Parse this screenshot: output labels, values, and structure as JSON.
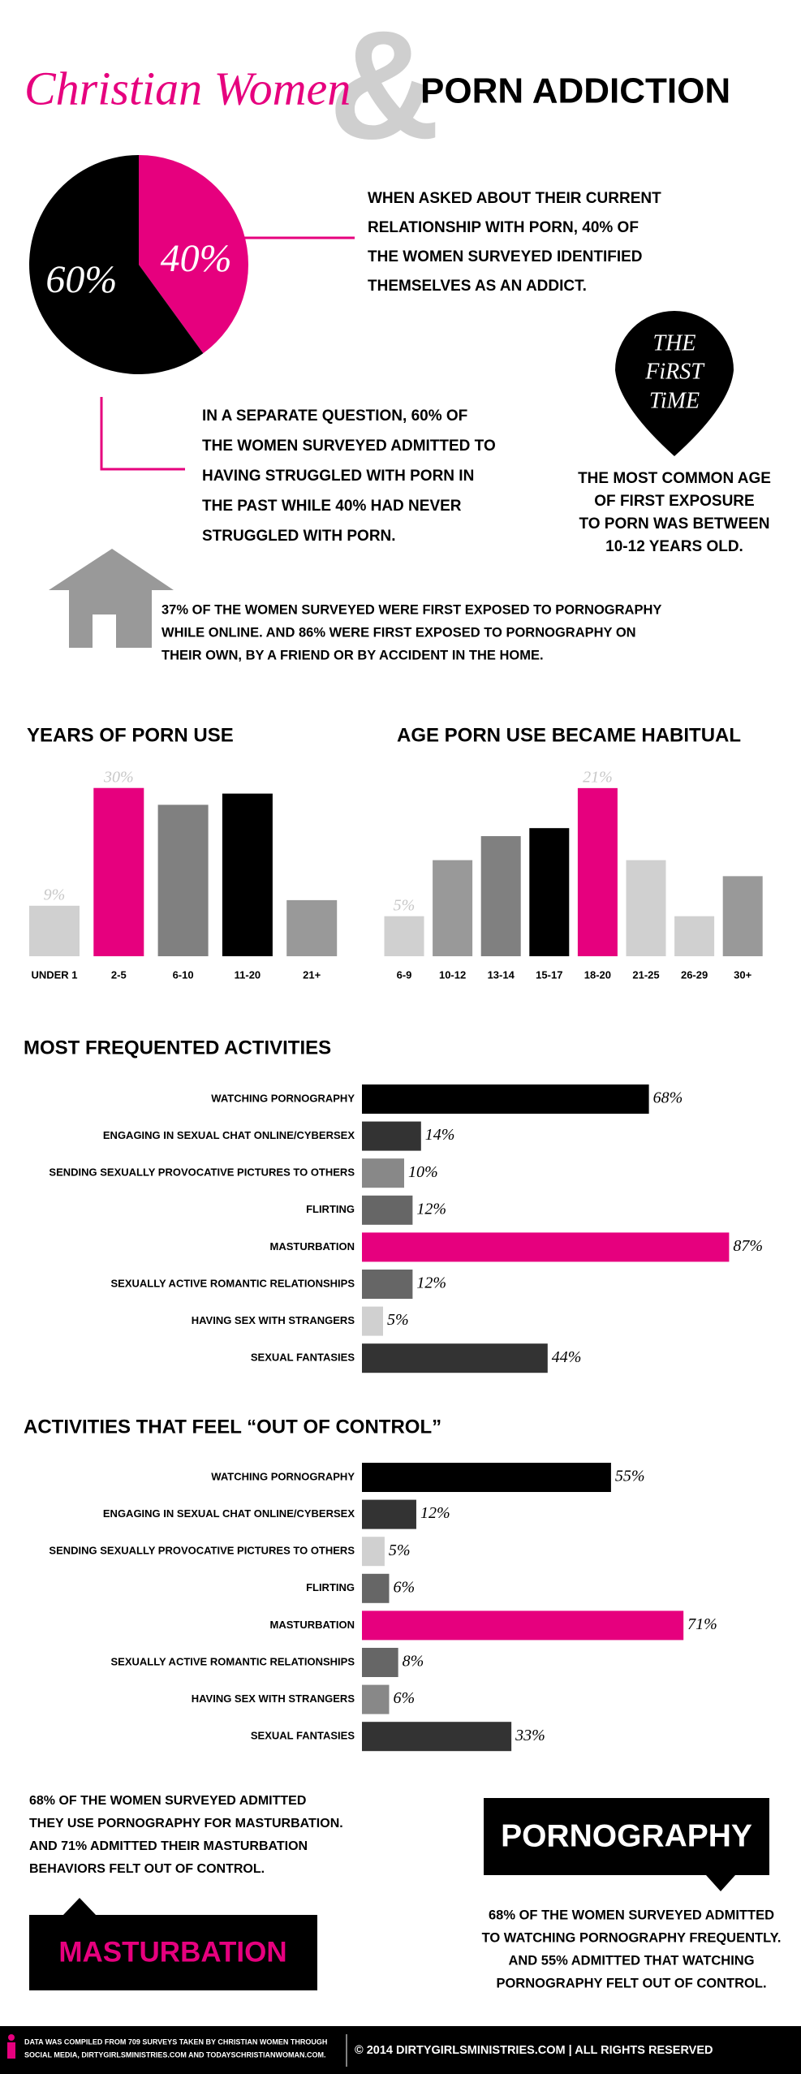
{
  "header": {
    "title_script": "Christian Women",
    "ampersand": "&",
    "title_bold": "PORN ADDICTION"
  },
  "texts": {
    "addict": [
      "WHEN ASKED ABOUT THEIR CURRENT",
      "RELATIONSHIP WITH PORN, 40% OF",
      "THE WOMEN SURVEYED IDENTIFIED",
      "THEMSELVES AS AN ADDICT."
    ],
    "struggled": [
      "IN A SEPARATE QUESTION, 60% OF",
      "THE WOMEN SURVEYED ADMITTED TO",
      "HAVING STRUGGLED WITH PORN IN",
      "THE PAST WHILE 40% HAD NEVER",
      "STRUGGLED WITH PORN."
    ],
    "first_time_pin": [
      "THE",
      "FiRST",
      "TiME"
    ],
    "first_exposure": [
      "THE MOST COMMON AGE",
      "OF FIRST EXPOSURE",
      "TO PORN WAS BETWEEN",
      "10-12 YEARS OLD."
    ],
    "online": [
      "37% OF THE WOMEN SURVEYED WERE FIRST EXPOSED TO PORNOGRAPHY",
      "WHILE ONLINE. AND 86% WERE FIRST EXPOSED TO PORNOGRAPHY ON",
      "THEIR OWN, BY A FRIEND OR BY ACCIDENT IN THE HOME."
    ],
    "masturbation_note": [
      "68% OF THE WOMEN SURVEYED ADMITTED",
      "THEY USE PORNOGRAPHY FOR MASTURBATION.",
      "AND 71% ADMITTED THEIR MASTURBATION",
      "BEHAVIORS FELT OUT OF CONTROL."
    ],
    "pornography_note": [
      "68% OF THE WOMEN SURVEYED ADMITTED",
      "TO WATCHING PORNOGRAPHY FREQUENTLY.",
      "AND 55% ADMITTED THAT WATCHING",
      "PORNOGRAPHY FELT OUT OF CONTROL."
    ]
  },
  "callouts": {
    "masturbation": "MASTURBATION",
    "pornography": "PORNOGRAPHY"
  },
  "footer": {
    "data_note": [
      "DATA WAS COMPILED FROM 709 SURVEYS TAKEN BY CHRISTIAN WOMEN THROUGH",
      "SOCIAL MEDIA, DIRTYGIRLSMINISTRIES.COM AND TODAYSCHRISTIANWOMAN.COM."
    ],
    "copyright": "© 2014 DIRTYGIRLSMINISTRIES.COM | ALL RIGHTS RESERVED"
  },
  "chart_data": [
    {
      "type": "pie",
      "values": [
        60,
        40
      ],
      "value_labels": [
        "60%",
        "40%"
      ],
      "colors": [
        "#000000",
        "#e6007e"
      ]
    },
    {
      "type": "bar",
      "title": "YEARS OF PORN USE",
      "categories": [
        "UNDER 1",
        "2-5",
        "6-10",
        "11-20",
        "21+"
      ],
      "values": [
        9,
        30,
        27,
        29,
        10
      ],
      "value_labels": [
        "9%",
        "30%",
        null,
        null,
        null
      ],
      "colors": [
        "#d0d0d0",
        "#e6007e",
        "#808080",
        "#000000",
        "#999999"
      ],
      "ylim": [
        0,
        33
      ]
    },
    {
      "type": "bar",
      "title": "AGE PORN USE BECAME HABITUAL",
      "categories": [
        "6-9",
        "10-12",
        "13-14",
        "15-17",
        "18-20",
        "21-25",
        "26-29",
        "30+"
      ],
      "values": [
        5,
        12,
        15,
        16,
        21,
        12,
        5,
        10
      ],
      "value_labels": [
        "5%",
        null,
        null,
        null,
        "21%",
        null,
        null,
        null
      ],
      "colors": [
        "#d0d0d0",
        "#999999",
        "#808080",
        "#000000",
        "#e6007e",
        "#d0d0d0",
        "#d0d0d0",
        "#999999"
      ],
      "ylim": [
        0,
        22
      ]
    },
    {
      "type": "hbar",
      "title": "MOST FREQUENTED ACTIVITIES",
      "categories": [
        "WATCHING PORNOGRAPHY",
        "ENGAGING IN SEXUAL CHAT ONLINE/CYBERSEX",
        "SENDING SEXUALLY PROVOCATIVE PICTURES TO OTHERS",
        "FLIRTING",
        "MASTURBATION",
        "SEXUALLY ACTIVE ROMANTIC RELATIONSHIPS",
        "HAVING SEX WITH STRANGERS",
        "SEXUAL FANTASIES"
      ],
      "values": [
        68,
        14,
        10,
        12,
        87,
        12,
        5,
        44
      ],
      "value_labels": [
        "68%",
        "14%",
        "10%",
        "12%",
        "87%",
        "12%",
        "5%",
        "44%"
      ],
      "colors": [
        "#000000",
        "#333333",
        "#888888",
        "#666666",
        "#e6007e",
        "#666666",
        "#d0d0d0",
        "#333333"
      ],
      "xlim": [
        0,
        100
      ]
    },
    {
      "type": "hbar",
      "title": "ACTIVITIES THAT FEEL “OUT OF CONTROL”",
      "categories": [
        "WATCHING PORNOGRAPHY",
        "ENGAGING IN SEXUAL CHAT ONLINE/CYBERSEX",
        "SENDING SEXUALLY PROVOCATIVE PICTURES TO OTHERS",
        "FLIRTING",
        "MASTURBATION",
        "SEXUALLY ACTIVE ROMANTIC RELATIONSHIPS",
        "HAVING SEX WITH STRANGERS",
        "SEXUAL FANTASIES"
      ],
      "values": [
        55,
        12,
        5,
        6,
        71,
        8,
        6,
        33
      ],
      "value_labels": [
        "55%",
        "12%",
        "5%",
        "6%",
        "71%",
        "8%",
        "6%",
        "33%"
      ],
      "colors": [
        "#000000",
        "#333333",
        "#d0d0d0",
        "#666666",
        "#e6007e",
        "#666666",
        "#888888",
        "#333333"
      ],
      "xlim": [
        0,
        100
      ]
    }
  ]
}
